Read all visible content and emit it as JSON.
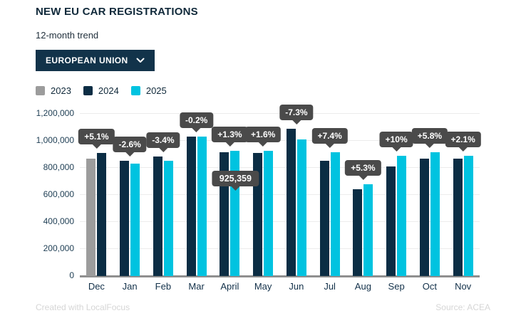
{
  "header": {
    "title": "NEW EU CAR REGISTRATIONS",
    "subtitle": "12-month trend"
  },
  "dropdown": {
    "label": "EUROPEAN UNION",
    "icon": "chevron-down-icon"
  },
  "legend": {
    "items": [
      {
        "label": "2023",
        "color": "#9c9c9c"
      },
      {
        "label": "2024",
        "color": "#0b2d44"
      },
      {
        "label": "2025",
        "color": "#00c3e0"
      }
    ]
  },
  "chart_data": {
    "type": "bar",
    "title": "NEW EU CAR REGISTRATIONS",
    "subtitle": "12-month trend",
    "categories": [
      "Dec",
      "Jan",
      "Feb",
      "Mar",
      "April",
      "May",
      "Jun",
      "Jul",
      "Aug",
      "Sep",
      "Oct",
      "Nov"
    ],
    "series": [
      {
        "name": "2023",
        "color": "#9c9c9c",
        "values": [
          866000,
          null,
          null,
          null,
          null,
          null,
          null,
          null,
          null,
          null,
          null,
          null
        ]
      },
      {
        "name": "2024",
        "color": "#0b2d44",
        "values": [
          910000,
          852000,
          884000,
          1032000,
          914000,
          912000,
          1090000,
          852000,
          644000,
          809000,
          866000,
          870000
        ]
      },
      {
        "name": "2025",
        "color": "#00c3e0",
        "values": [
          null,
          830000,
          854000,
          1030000,
          925359,
          926000,
          1010000,
          915000,
          678000,
          889000,
          916000,
          888000
        ]
      }
    ],
    "change_labels": [
      "+5.1%",
      "-2.6%",
      "-3.4%",
      "-0.2%",
      "+1.3%",
      "+1.6%",
      "-7.3%",
      "+7.4%",
      "+5.3%",
      "+10%",
      "+5.8%",
      "+2.1%"
    ],
    "tooltip": {
      "category": "April",
      "series": "2025",
      "text": "925,359"
    },
    "ylim": [
      0,
      1200000
    ],
    "yticks": [
      "0",
      "200,000",
      "400,000",
      "600,000",
      "800,000",
      "1,000,000",
      "1,200,000"
    ],
    "grid": "horizontal",
    "legend_position": "top-left",
    "label_style": {
      "bg": "#4a4a4a",
      "text": "#ffffff"
    }
  },
  "footer": {
    "left": "Created with LocalFocus",
    "right": "Source: ACEA"
  }
}
